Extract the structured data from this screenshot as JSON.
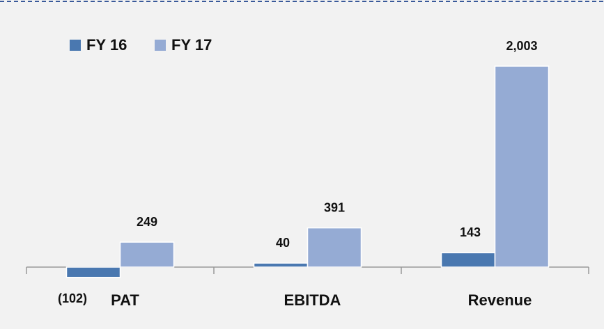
{
  "chart_data": {
    "type": "bar",
    "categories": [
      "PAT",
      "EBITDA",
      "Revenue"
    ],
    "series": [
      {
        "name": "FY 16",
        "color": "#4a78b0",
        "values": [
          -102,
          40,
          143
        ],
        "value_labels": [
          "(102)",
          "40",
          "143"
        ]
      },
      {
        "name": "FY 17",
        "color": "#95abd4",
        "values": [
          249,
          391,
          2003
        ],
        "value_labels": [
          "249",
          "391",
          "2,003"
        ]
      }
    ],
    "ylim": [
      -300,
      2300
    ],
    "legend": "top-left"
  }
}
